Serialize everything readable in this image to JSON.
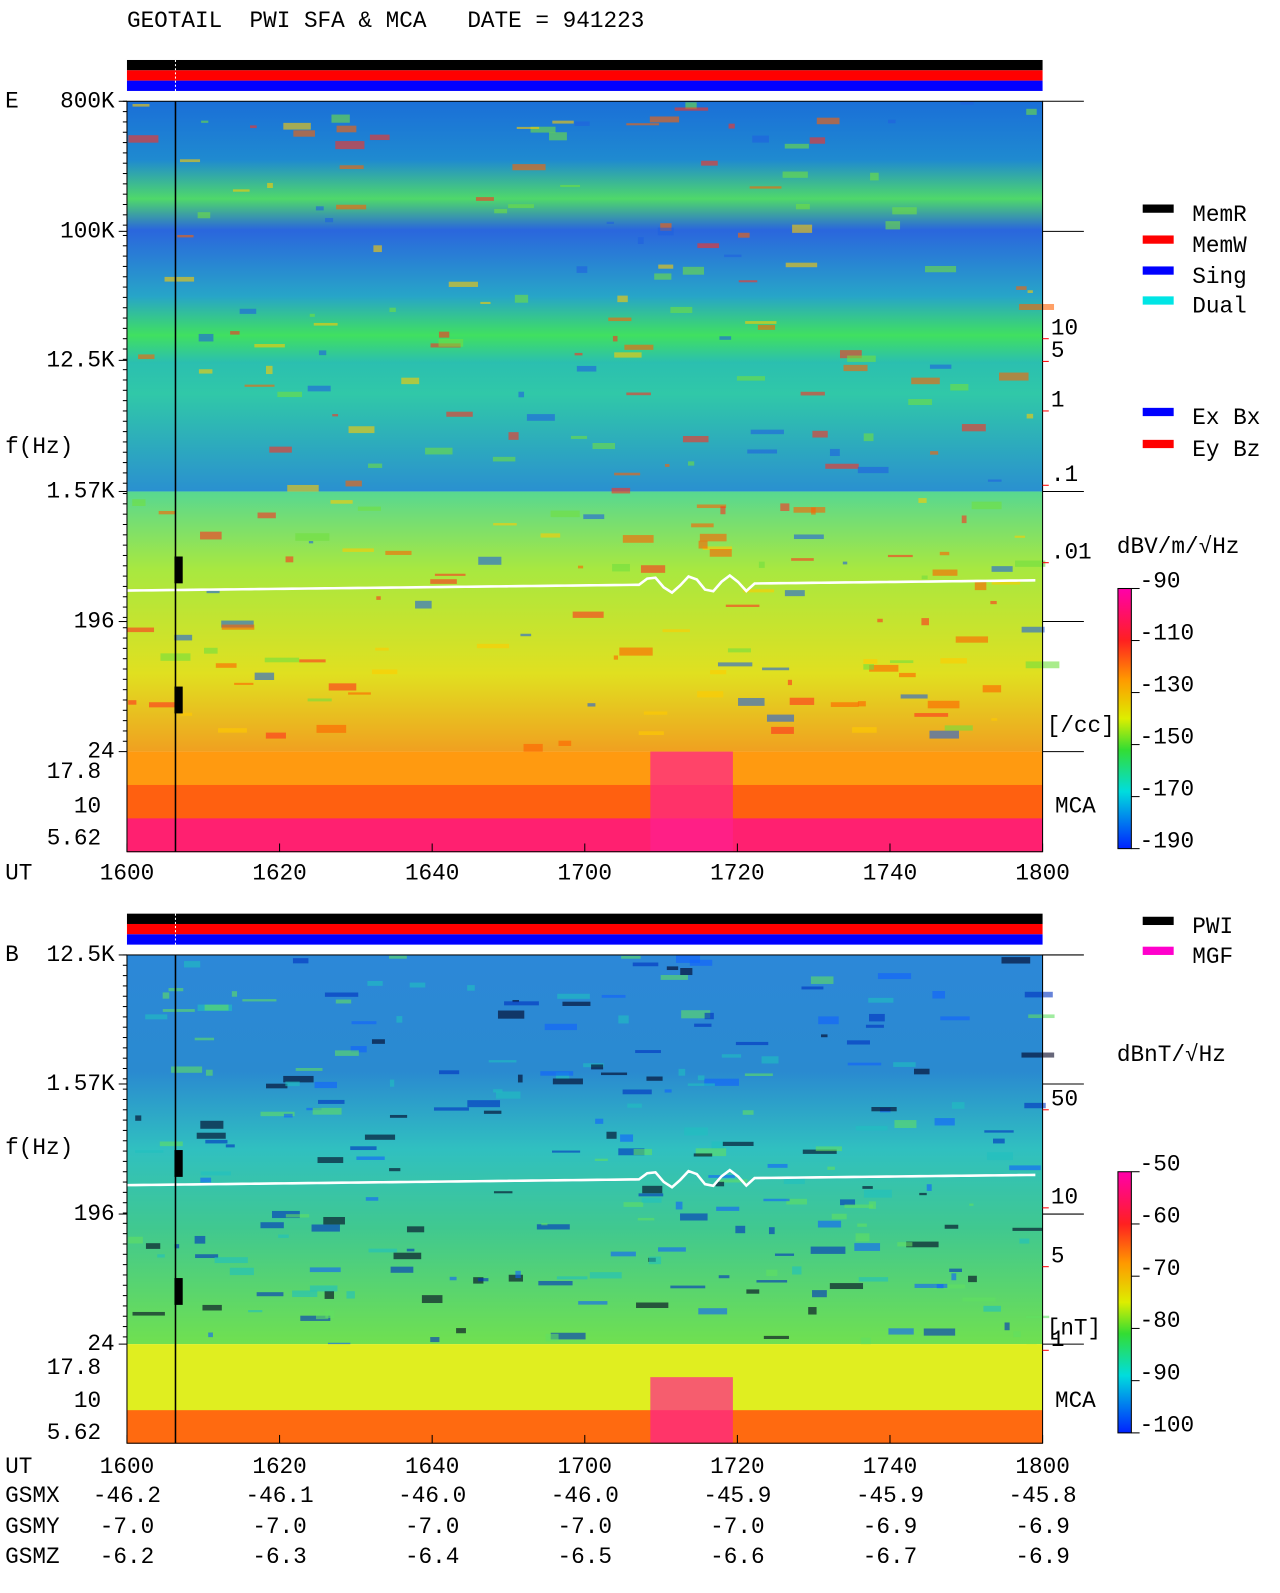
{
  "header": {
    "title": "GEOTAIL  PWI SFA & MCA   DATE = 941223"
  },
  "panels": [
    {
      "label": "E",
      "axis_label": "f(Hz)",
      "freq_ticks": [
        "800K",
        "100K",
        "12.5K",
        "1.57K",
        "196",
        "24"
      ],
      "mca_ticks": [
        "17.8",
        "10",
        "5.62"
      ],
      "time_label": "UT",
      "times": [
        "1600",
        "1620",
        "1640",
        "1700",
        "1720",
        "1740",
        "1800"
      ],
      "density_ticks": [
        "10",
        "5",
        "1",
        ".1",
        ".01"
      ],
      "density_unit": "[/cc]",
      "mca_label": "MCA",
      "colorbar": {
        "unit": "dBV/m/√Hz",
        "ticks": [
          -90,
          -110,
          -130,
          -150,
          -170,
          -190
        ]
      }
    },
    {
      "label": "B",
      "axis_label": "f(Hz)",
      "freq_ticks": [
        "12.5K",
        "1.57K",
        "196",
        "24"
      ],
      "mca_ticks": [
        "17.8",
        "10",
        "5.62"
      ],
      "time_label": "UT",
      "times": [
        "1600",
        "1620",
        "1640",
        "1700",
        "1720",
        "1740",
        "1800"
      ],
      "density_ticks": [
        "50",
        "10",
        "5",
        "1"
      ],
      "density_unit": "[nT]",
      "mca_label": "MCA",
      "colorbar": {
        "unit": "dBnT/√Hz",
        "ticks": [
          -50,
          -60,
          -70,
          -80,
          -90,
          -100
        ]
      }
    }
  ],
  "legend_mode": [
    {
      "name": "MemR",
      "color": "#000000"
    },
    {
      "name": "MemW",
      "color": "#ff0000"
    },
    {
      "name": "Sing",
      "color": "#0000ff"
    },
    {
      "name": "Dual",
      "color": "#00e5e5"
    }
  ],
  "legend_component": [
    {
      "name": "Ex Bx",
      "color": "#0000ff"
    },
    {
      "name": "Ey Bz",
      "color": "#ff0000"
    }
  ],
  "legend_source": [
    {
      "name": "PWI",
      "color": "#000000"
    },
    {
      "name": "MGF",
      "color": "#ff00cc"
    }
  ],
  "orbit": [
    {
      "name": "GSMX",
      "values": [
        "-46.2",
        "-46.1",
        "-46.0",
        "-46.0",
        "-45.9",
        "-45.9",
        "-45.8"
      ]
    },
    {
      "name": "GSMY",
      "values": [
        "-7.0",
        "-7.0",
        "-7.0",
        "-7.0",
        "-7.0",
        "-6.9",
        "-6.9"
      ]
    },
    {
      "name": "GSMZ",
      "values": [
        "-6.2",
        "-6.3",
        "-6.4",
        "-6.5",
        "-6.6",
        "-6.7",
        "-6.9"
      ]
    }
  ]
}
